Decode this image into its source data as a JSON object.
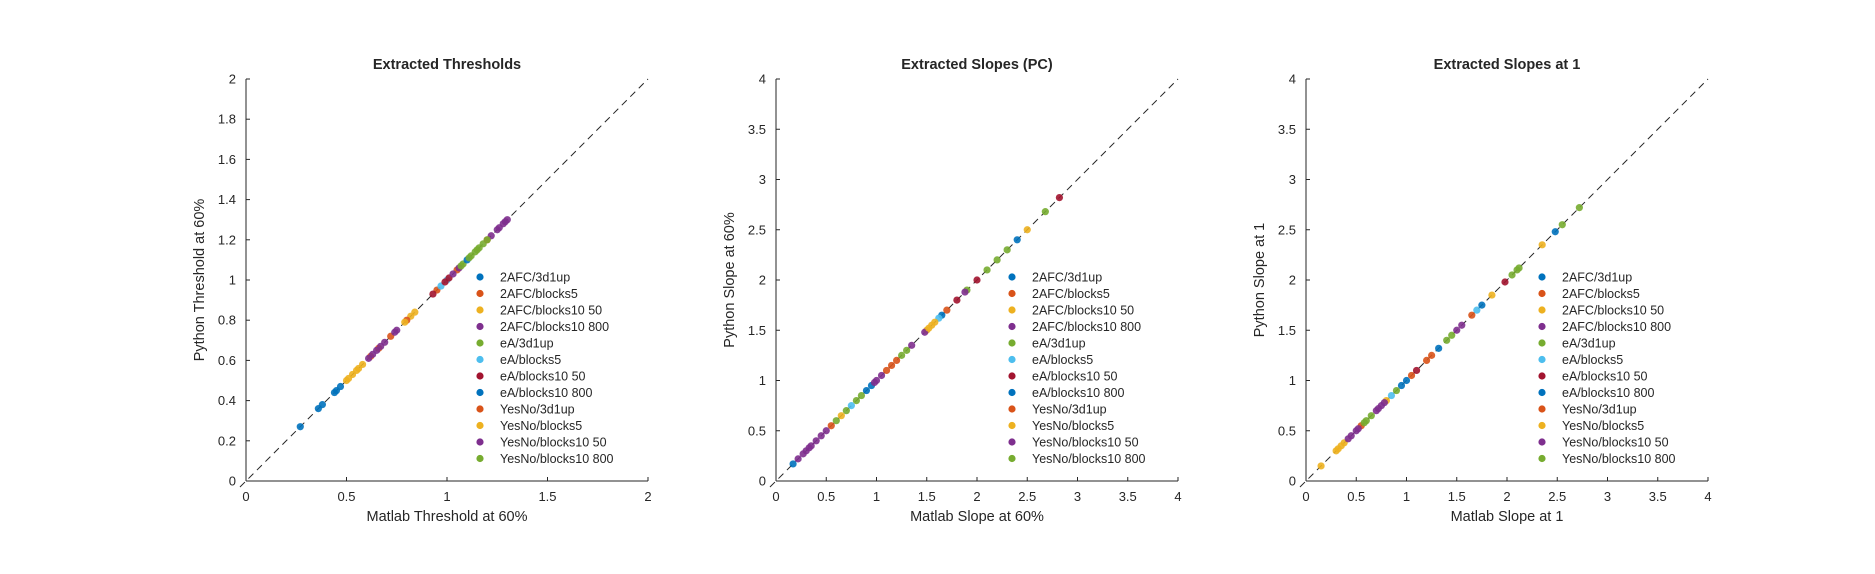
{
  "chart_data": [
    {
      "type": "scatter",
      "title": "Extracted Thresholds",
      "xlabel": "Matlab Threshold at 60%",
      "ylabel": "Python Threshold at 60%",
      "xlim": [
        0,
        2
      ],
      "ylim": [
        0,
        2
      ],
      "xticks": [
        "0",
        "0.5",
        "1",
        "1.5",
        "2"
      ],
      "yticks": [
        "0",
        "0.2",
        "0.4",
        "0.6",
        "0.8",
        "1",
        "1.2",
        "1.4",
        "1.6",
        "1.8",
        "2"
      ],
      "reference_line": "y = x",
      "grid": false,
      "legend_position": "lower-right",
      "series": [
        {
          "name": "2AFC/3d1up",
          "color": "#0072BD",
          "x": [
            0.27,
            0.36,
            0.38,
            0.44,
            0.47
          ],
          "y": [
            0.27,
            0.36,
            0.38,
            0.44,
            0.47
          ]
        },
        {
          "name": "2AFC/blocks5",
          "color": "#D95319",
          "x": [
            0.62,
            0.66,
            0.72,
            0.95,
            1.05
          ],
          "y": [
            0.62,
            0.66,
            0.72,
            0.95,
            1.05
          ]
        },
        {
          "name": "2AFC/blocks10 50",
          "color": "#EDB120",
          "x": [
            0.5,
            0.53,
            0.56,
            0.58,
            0.82
          ],
          "y": [
            0.5,
            0.53,
            0.56,
            0.58,
            0.82
          ]
        },
        {
          "name": "2AFC/blocks10 800",
          "color": "#7E2F8E",
          "x": [
            0.61,
            0.65,
            0.69,
            0.74,
            1.26,
            1.29
          ],
          "y": [
            0.61,
            0.65,
            0.69,
            0.74,
            1.26,
            1.29
          ]
        },
        {
          "name": "eA/3d1up",
          "color": "#77AC30",
          "x": [
            1.08,
            1.12,
            1.15,
            1.18
          ],
          "y": [
            1.08,
            1.12,
            1.15,
            1.18
          ]
        },
        {
          "name": "eA/blocks5",
          "color": "#4DBEEE",
          "x": [
            0.97,
            1.0
          ],
          "y": [
            0.97,
            1.0
          ]
        },
        {
          "name": "eA/blocks10 50",
          "color": "#A2142F",
          "x": [
            0.93,
            0.99,
            1.01
          ],
          "y": [
            0.93,
            0.99,
            1.01
          ]
        },
        {
          "name": "eA/blocks10 800",
          "color": "#0072BD",
          "x": [
            0.45,
            1.1
          ],
          "y": [
            0.45,
            1.1
          ]
        },
        {
          "name": "YesNo/3d1up",
          "color": "#D95319",
          "x": [
            0.8,
            1.2
          ],
          "y": [
            0.8,
            1.2
          ]
        },
        {
          "name": "YesNo/blocks5",
          "color": "#EDB120",
          "x": [
            0.51,
            0.55,
            0.79,
            0.84
          ],
          "y": [
            0.51,
            0.55,
            0.79,
            0.84
          ]
        },
        {
          "name": "YesNo/blocks10 50",
          "color": "#7E2F8E",
          "x": [
            0.63,
            0.67,
            0.75,
            1.03,
            1.06,
            1.22,
            1.25,
            1.28,
            1.3
          ],
          "y": [
            0.63,
            0.67,
            0.75,
            1.03,
            1.06,
            1.22,
            1.25,
            1.28,
            1.3
          ]
        },
        {
          "name": "YesNo/blocks10 800",
          "color": "#77AC30",
          "x": [
            1.07,
            1.11,
            1.14,
            1.16,
            1.2
          ],
          "y": [
            1.07,
            1.11,
            1.14,
            1.16,
            1.2
          ]
        }
      ]
    },
    {
      "type": "scatter",
      "title": "Extracted Slopes (PC)",
      "xlabel": "Matlab Slope at 60%",
      "ylabel": "Python Slope at 60%",
      "xlim": [
        0,
        4
      ],
      "ylim": [
        0,
        4
      ],
      "xticks": [
        "0",
        "0.5",
        "1",
        "1.5",
        "2",
        "2.5",
        "3",
        "3.5",
        "4"
      ],
      "yticks": [
        "0",
        "0.5",
        "1",
        "1.5",
        "2",
        "2.5",
        "3",
        "3.5",
        "4"
      ],
      "reference_line": "y = x",
      "grid": false,
      "legend_position": "lower-right",
      "series": [
        {
          "name": "2AFC/3d1up",
          "color": "#0072BD",
          "x": [
            0.17,
            0.9,
            1.65
          ],
          "y": [
            0.17,
            0.9,
            1.65
          ]
        },
        {
          "name": "2AFC/blocks5",
          "color": "#D95319",
          "x": [
            1.1,
            1.2,
            1.7
          ],
          "y": [
            1.1,
            1.2,
            1.7
          ]
        },
        {
          "name": "2AFC/blocks10 50",
          "color": "#EDB120",
          "x": [
            1.5,
            1.55,
            2.5
          ],
          "y": [
            1.5,
            1.55,
            2.5
          ]
        },
        {
          "name": "2AFC/blocks10 800",
          "color": "#7E2F8E",
          "x": [
            0.3,
            0.35,
            0.4,
            1.0,
            1.05,
            1.48
          ],
          "y": [
            0.3,
            0.35,
            0.4,
            1.0,
            1.05,
            1.48
          ]
        },
        {
          "name": "eA/3d1up",
          "color": "#77AC30",
          "x": [
            0.6,
            0.7,
            0.8,
            1.3,
            1.9
          ],
          "y": [
            0.6,
            0.7,
            0.8,
            1.3,
            1.9
          ]
        },
        {
          "name": "eA/blocks5",
          "color": "#4DBEEE",
          "x": [
            0.75,
            1.62
          ],
          "y": [
            0.75,
            1.62
          ]
        },
        {
          "name": "eA/blocks10 50",
          "color": "#A2142F",
          "x": [
            1.8,
            2.0,
            2.82
          ],
          "y": [
            1.8,
            2.0,
            2.82
          ]
        },
        {
          "name": "eA/blocks10 800",
          "color": "#0072BD",
          "x": [
            0.95,
            2.4
          ],
          "y": [
            0.95,
            2.4
          ]
        },
        {
          "name": "YesNo/3d1up",
          "color": "#D95319",
          "x": [
            0.55,
            1.15
          ],
          "y": [
            0.55,
            1.15
          ]
        },
        {
          "name": "YesNo/blocks5",
          "color": "#EDB120",
          "x": [
            0.65,
            1.52,
            1.58
          ],
          "y": [
            0.65,
            1.52,
            1.58
          ]
        },
        {
          "name": "YesNo/blocks10 50",
          "color": "#7E2F8E",
          "x": [
            0.22,
            0.27,
            0.33,
            0.45,
            0.5,
            0.98,
            1.35,
            1.88
          ],
          "y": [
            0.22,
            0.27,
            0.33,
            0.45,
            0.5,
            0.98,
            1.35,
            1.88
          ]
        },
        {
          "name": "YesNo/blocks10 800",
          "color": "#77AC30",
          "x": [
            0.85,
            1.25,
            2.1,
            2.2,
            2.3,
            2.68
          ],
          "y": [
            0.85,
            1.25,
            2.1,
            2.2,
            2.3,
            2.68
          ]
        }
      ]
    },
    {
      "type": "scatter",
      "title": "Extracted Slopes at 1",
      "xlabel": "Matlab Slope at 1",
      "ylabel": "Python Slope at 1",
      "xlim": [
        0,
        4
      ],
      "ylim": [
        0,
        4
      ],
      "xticks": [
        "0",
        "0.5",
        "1",
        "1.5",
        "2",
        "2.5",
        "3",
        "3.5",
        "4"
      ],
      "yticks": [
        "0",
        "0.5",
        "1",
        "1.5",
        "2",
        "2.5",
        "3",
        "3.5",
        "4"
      ],
      "reference_line": "y = x",
      "grid": false,
      "legend_position": "lower-right",
      "series": [
        {
          "name": "2AFC/3d1up",
          "color": "#0072BD",
          "x": [
            1.0,
            1.75,
            2.48
          ],
          "y": [
            1.0,
            1.75,
            2.48
          ]
        },
        {
          "name": "2AFC/blocks5",
          "color": "#D95319",
          "x": [
            1.05,
            1.2,
            1.65
          ],
          "y": [
            1.05,
            1.2,
            1.65
          ]
        },
        {
          "name": "2AFC/blocks10 50",
          "color": "#EDB120",
          "x": [
            0.15,
            0.3,
            0.35,
            1.85,
            2.35
          ],
          "y": [
            0.15,
            0.3,
            0.35,
            1.85,
            2.35
          ]
        },
        {
          "name": "2AFC/blocks10 800",
          "color": "#7E2F8E",
          "x": [
            0.45,
            0.5,
            0.7,
            0.75,
            1.55
          ],
          "y": [
            0.45,
            0.5,
            0.7,
            0.75,
            1.55
          ]
        },
        {
          "name": "eA/3d1up",
          "color": "#77AC30",
          "x": [
            0.6,
            0.65,
            1.45,
            2.05,
            2.1
          ],
          "y": [
            0.6,
            0.65,
            1.45,
            2.05,
            2.1
          ]
        },
        {
          "name": "eA/blocks5",
          "color": "#4DBEEE",
          "x": [
            0.85,
            1.7
          ],
          "y": [
            0.85,
            1.7
          ]
        },
        {
          "name": "eA/blocks10 50",
          "color": "#A2142F",
          "x": [
            1.1,
            1.98
          ],
          "y": [
            1.1,
            1.98
          ]
        },
        {
          "name": "eA/blocks10 800",
          "color": "#0072BD",
          "x": [
            0.95,
            1.32
          ],
          "y": [
            0.95,
            1.32
          ]
        },
        {
          "name": "YesNo/3d1up",
          "color": "#D95319",
          "x": [
            0.55,
            1.25
          ],
          "y": [
            0.55,
            1.25
          ]
        },
        {
          "name": "YesNo/blocks5",
          "color": "#EDB120",
          "x": [
            0.32,
            0.38,
            0.8
          ],
          "y": [
            0.32,
            0.38,
            0.8
          ]
        },
        {
          "name": "YesNo/blocks10 50",
          "color": "#7E2F8E",
          "x": [
            0.42,
            0.52,
            0.72,
            0.78,
            1.5
          ],
          "y": [
            0.42,
            0.52,
            0.72,
            0.78,
            1.5
          ]
        },
        {
          "name": "YesNo/blocks10 800",
          "color": "#77AC30",
          "x": [
            0.58,
            0.9,
            1.4,
            2.12,
            2.55,
            2.72
          ],
          "y": [
            0.58,
            0.9,
            1.4,
            2.12,
            2.55,
            2.72
          ]
        }
      ]
    }
  ]
}
